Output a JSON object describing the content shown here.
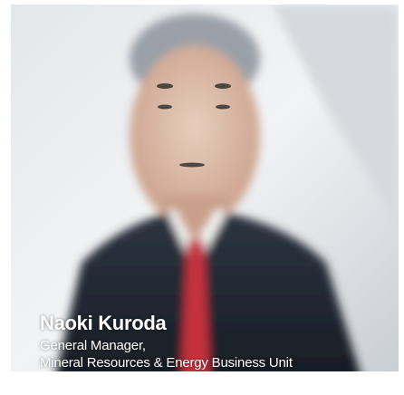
{
  "profile": {
    "name": "Naoki Kuroda",
    "title_line1": "General Manager,",
    "title_line2": "Mineral Resources & Energy Business Unit"
  }
}
